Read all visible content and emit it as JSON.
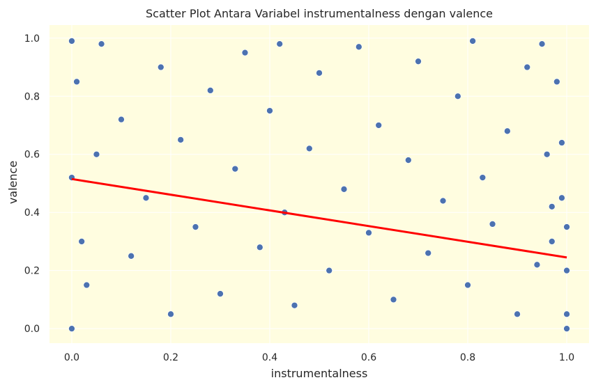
{
  "chart_data": {
    "type": "scatter",
    "title": "Scatter Plot Antara Variabel instrumentalness dengan valence",
    "xlabel": "instrumentalness",
    "ylabel": "valence",
    "xlim": [
      -0.045,
      1.045
    ],
    "ylim": [
      -0.05,
      1.045
    ],
    "xticks": [
      0.0,
      0.2,
      0.4,
      0.6,
      0.8,
      1.0
    ],
    "yticks": [
      0.0,
      0.2,
      0.4,
      0.6,
      0.8,
      1.0
    ],
    "xtick_labels": [
      "0.0",
      "0.2",
      "0.4",
      "0.6",
      "0.8",
      "1.0"
    ],
    "ytick_labels": [
      "0.0",
      "0.2",
      "0.4",
      "0.6",
      "0.8",
      "1.0"
    ],
    "grid": true,
    "series": [
      {
        "marker": "circle",
        "color": "#4C72B0",
        "points": [
          [
            0.0,
            0.99
          ],
          [
            0.0,
            0.0
          ],
          [
            0.0,
            0.52
          ],
          [
            0.01,
            0.85
          ],
          [
            0.02,
            0.3
          ],
          [
            0.03,
            0.15
          ],
          [
            0.05,
            0.6
          ],
          [
            0.06,
            0.98
          ],
          [
            0.1,
            0.72
          ],
          [
            0.12,
            0.25
          ],
          [
            0.15,
            0.45
          ],
          [
            0.18,
            0.9
          ],
          [
            0.2,
            0.05
          ],
          [
            0.22,
            0.65
          ],
          [
            0.25,
            0.35
          ],
          [
            0.28,
            0.82
          ],
          [
            0.3,
            0.12
          ],
          [
            0.33,
            0.55
          ],
          [
            0.35,
            0.95
          ],
          [
            0.38,
            0.28
          ],
          [
            0.4,
            0.75
          ],
          [
            0.42,
            0.98
          ],
          [
            0.43,
            0.4
          ],
          [
            0.45,
            0.08
          ],
          [
            0.48,
            0.62
          ],
          [
            0.5,
            0.88
          ],
          [
            0.52,
            0.2
          ],
          [
            0.55,
            0.48
          ],
          [
            0.58,
            0.97
          ],
          [
            0.6,
            0.33
          ],
          [
            0.62,
            0.7
          ],
          [
            0.65,
            0.1
          ],
          [
            0.68,
            0.58
          ],
          [
            0.7,
            0.92
          ],
          [
            0.72,
            0.26
          ],
          [
            0.75,
            0.44
          ],
          [
            0.78,
            0.8
          ],
          [
            0.8,
            0.15
          ],
          [
            0.81,
            0.99
          ],
          [
            0.83,
            0.52
          ],
          [
            0.85,
            0.36
          ],
          [
            0.88,
            0.68
          ],
          [
            0.9,
            0.05
          ],
          [
            0.92,
            0.9
          ],
          [
            0.94,
            0.22
          ],
          [
            0.95,
            0.98
          ],
          [
            0.96,
            0.6
          ],
          [
            0.97,
            0.3
          ],
          [
            0.98,
            0.85
          ],
          [
            0.99,
            0.45
          ],
          [
            0.99,
            0.64
          ],
          [
            1.0,
            0.2
          ],
          [
            1.0,
            0.05
          ],
          [
            1.0,
            0.35
          ],
          [
            1.0,
            0.0
          ],
          [
            0.97,
            0.42
          ]
        ]
      }
    ],
    "regression_line": {
      "color": "#FF0000",
      "x": [
        0.0,
        1.0
      ],
      "y": [
        0.515,
        0.245
      ]
    },
    "colors": {
      "plot_background": "#FFFDE0",
      "grid": "#FFFFFF",
      "marker_edge": "#FFFFFF"
    }
  }
}
